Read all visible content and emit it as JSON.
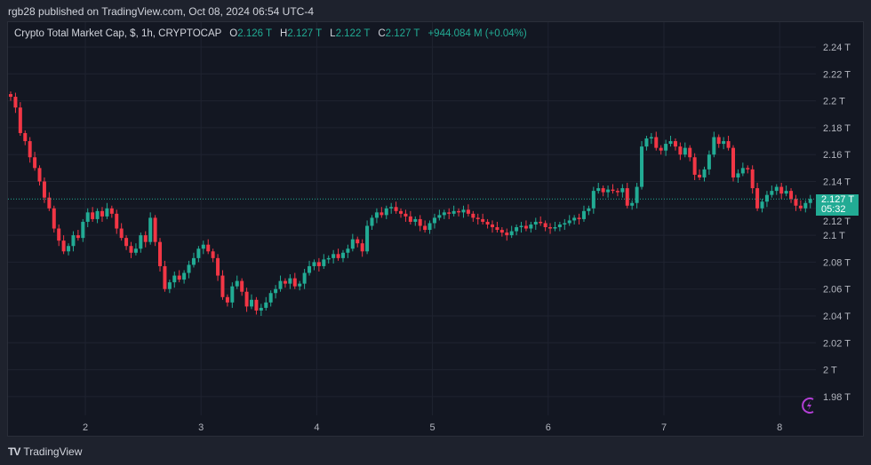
{
  "header": {
    "published": "rgb28 published on TradingView.com, Oct 08, 2024 06:54 UTC-4"
  },
  "legend": {
    "symbol": "Crypto Total Market Cap, $, 1h, CRYPTOCAP",
    "o_label": "O",
    "o": "2.126 T",
    "h_label": "H",
    "h": "2.127 T",
    "l_label": "L",
    "l": "2.122 T",
    "c_label": "C",
    "c": "2.127 T",
    "change": "+944.084 M (+0.04%)"
  },
  "last_price": {
    "value": "2.127 T",
    "countdown": "05:32"
  },
  "footer": {
    "brand": "TradingView"
  },
  "colors": {
    "up": "#22ab94",
    "down": "#f23645",
    "background": "#131722",
    "frame": "#1e222d",
    "bolt": "#b33fd6"
  },
  "icons": {
    "logo": "tradingview-logo-icon",
    "bolt": "lightning-bolt-icon"
  },
  "chart_data": {
    "type": "candlestick",
    "interval": "1h",
    "ylim": [
      1.97,
      2.25
    ],
    "y_ticks": [
      "2.24 T",
      "2.22 T",
      "2.2 T",
      "2.18 T",
      "2.16 T",
      "2.14 T",
      "2.12 T",
      "2.1 T",
      "2.08 T",
      "2.06 T",
      "2.04 T",
      "2.02 T",
      "2 T",
      "1.98 T"
    ],
    "y_tick_values": [
      2.24,
      2.22,
      2.2,
      2.18,
      2.16,
      2.14,
      2.12,
      2.1,
      2.08,
      2.06,
      2.04,
      2.02,
      2.0,
      1.98
    ],
    "x_ticks": [
      "2",
      "3",
      "4",
      "5",
      "6",
      "7",
      "8"
    ],
    "last_close": 2.127,
    "first_open": 2.205,
    "closes": [
      2.203,
      2.195,
      2.176,
      2.17,
      2.158,
      2.15,
      2.14,
      2.128,
      2.12,
      2.105,
      2.096,
      2.088,
      2.092,
      2.1,
      2.098,
      2.11,
      2.117,
      2.112,
      2.118,
      2.114,
      2.12,
      2.116,
      2.105,
      2.098,
      2.092,
      2.087,
      2.09,
      2.1,
      2.095,
      2.113,
      2.095,
      2.077,
      2.06,
      2.065,
      2.07,
      2.067,
      2.072,
      2.078,
      2.083,
      2.09,
      2.093,
      2.088,
      2.083,
      2.07,
      2.054,
      2.05,
      2.062,
      2.066,
      2.058,
      2.047,
      2.052,
      2.044,
      2.046,
      2.05,
      2.057,
      2.06,
      2.066,
      2.064,
      2.068,
      2.062,
      2.064,
      2.072,
      2.077,
      2.08,
      2.077,
      2.082,
      2.083,
      2.086,
      2.083,
      2.087,
      2.09,
      2.097,
      2.094,
      2.088,
      2.107,
      2.113,
      2.117,
      2.115,
      2.12,
      2.121,
      2.118,
      2.116,
      2.114,
      2.11,
      2.112,
      2.107,
      2.104,
      2.109,
      2.113,
      2.115,
      2.117,
      2.116,
      2.118,
      2.117,
      2.119,
      2.116,
      2.113,
      2.112,
      2.11,
      2.108,
      2.106,
      2.104,
      2.102,
      2.1,
      2.103,
      2.106,
      2.107,
      2.105,
      2.108,
      2.11,
      2.109,
      2.106,
      2.105,
      2.106,
      2.108,
      2.109,
      2.111,
      2.113,
      2.112,
      2.118,
      2.12,
      2.133,
      2.135,
      2.132,
      2.134,
      2.133,
      2.132,
      2.135,
      2.122,
      2.124,
      2.136,
      2.166,
      2.172,
      2.173,
      2.165,
      2.163,
      2.168,
      2.17,
      2.166,
      2.16,
      2.165,
      2.158,
      2.145,
      2.143,
      2.149,
      2.16,
      2.173,
      2.168,
      2.17,
      2.165,
      2.143,
      2.146,
      2.15,
      2.149,
      2.135,
      2.12,
      2.125,
      2.13,
      2.133,
      2.136,
      2.131,
      2.133,
      2.127,
      2.122,
      2.12,
      2.124,
      2.127
    ]
  }
}
